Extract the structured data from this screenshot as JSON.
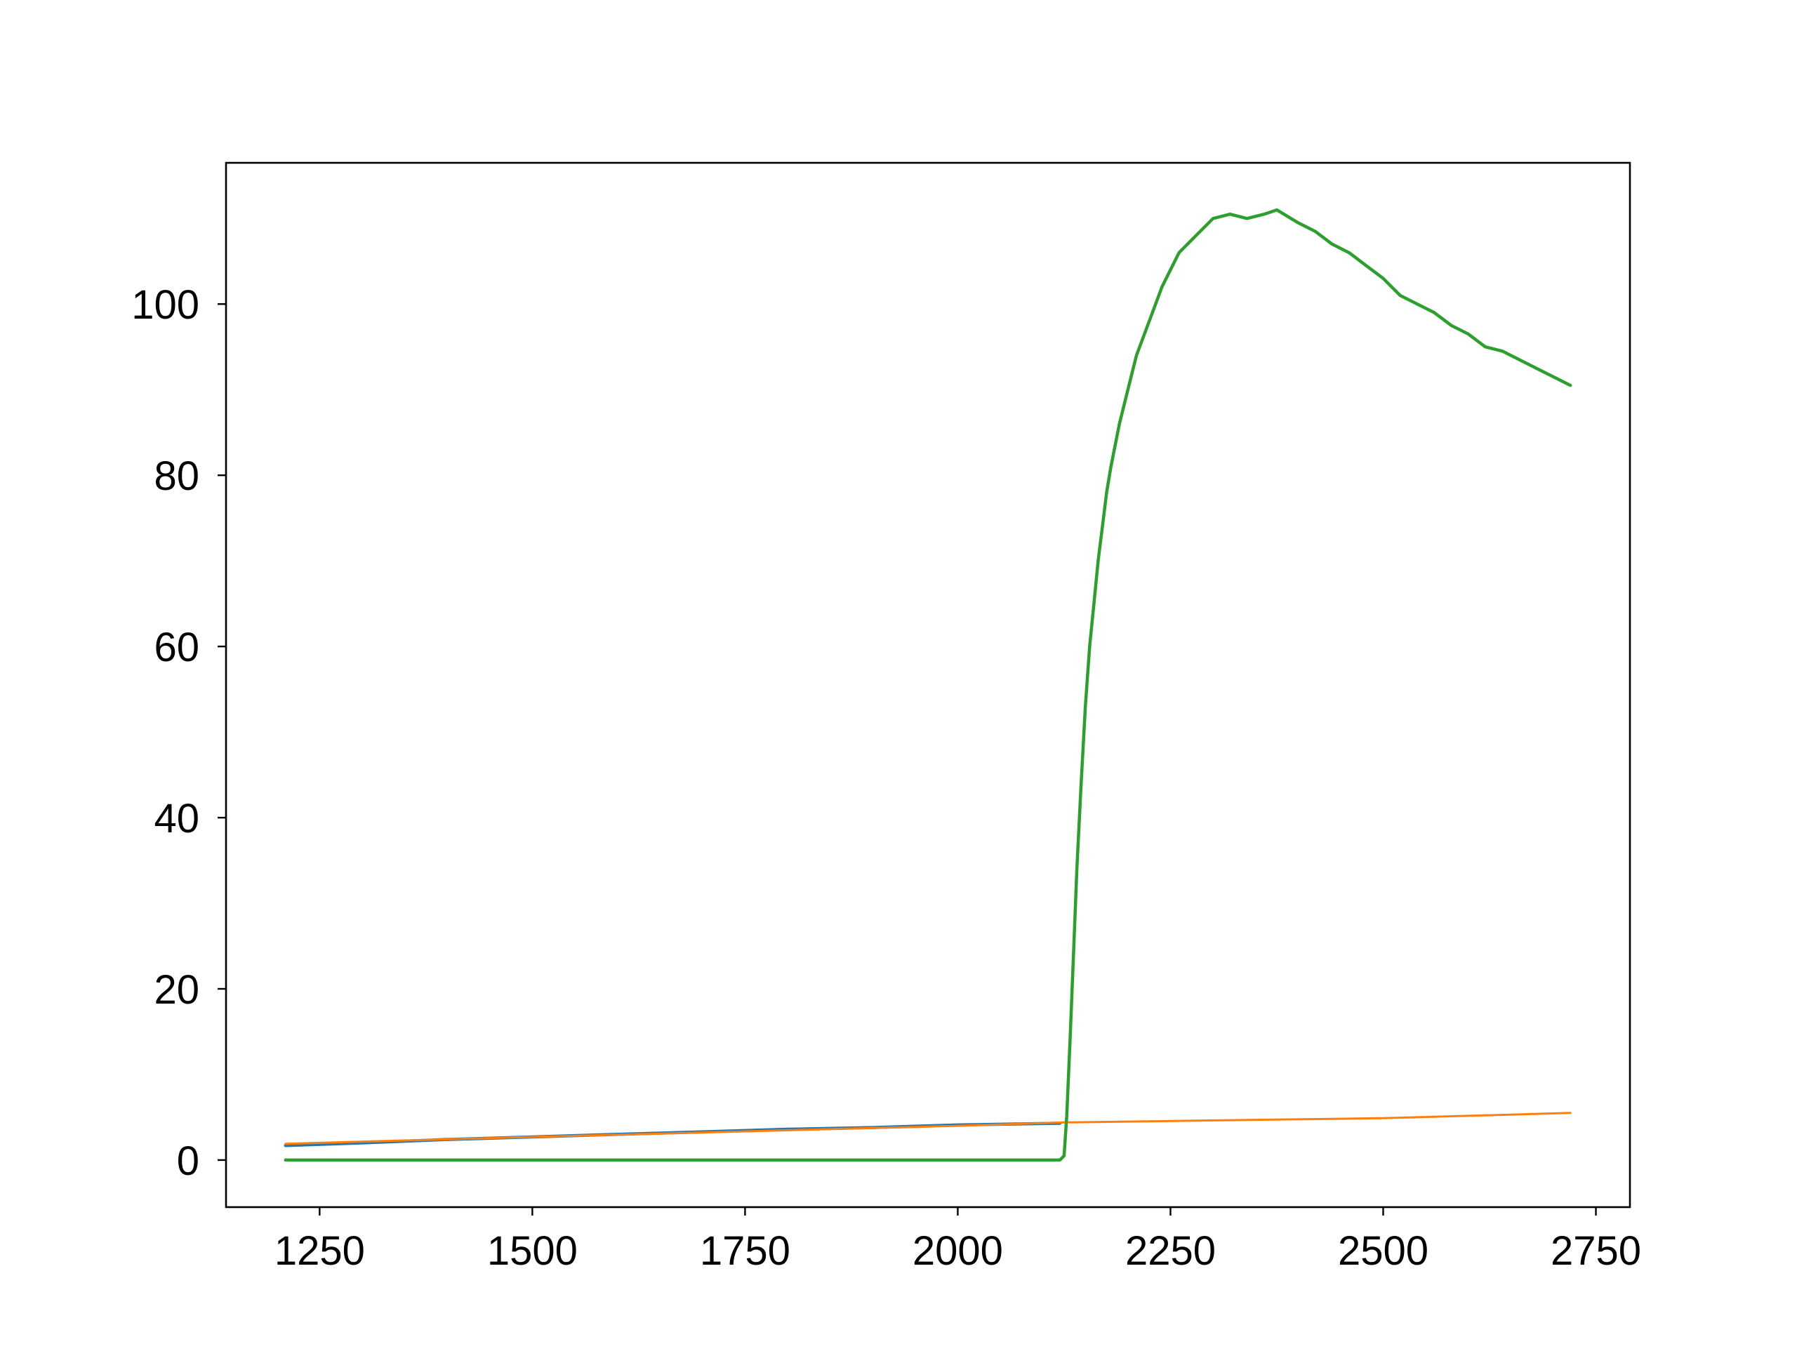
{
  "chart_data": {
    "type": "line",
    "title": "",
    "xlabel": "",
    "ylabel": "",
    "xlim": [
      1140,
      2790
    ],
    "ylim": [
      -5.5,
      116.5
    ],
    "x_ticks": [
      1250,
      1500,
      1750,
      2000,
      2250,
      2500,
      2750
    ],
    "y_ticks": [
      0,
      20,
      40,
      60,
      80,
      100
    ],
    "grid": false,
    "legend": "none",
    "colors": {
      "blue": "#1f77b4",
      "orange": "#ff7f0e",
      "green": "#2ca02c",
      "axes": "#000000"
    },
    "series": [
      {
        "color": "#1f77b4",
        "x": [
          1210,
          1300,
          1400,
          1500,
          1600,
          1700,
          1800,
          1900,
          2000,
          2120
        ],
        "y": [
          1.7,
          2.0,
          2.4,
          2.7,
          3.0,
          3.3,
          3.6,
          3.8,
          4.1,
          4.3
        ]
      },
      {
        "color": "#ff7f0e",
        "x": [
          1210,
          1500,
          2000,
          2125,
          2500,
          2720
        ],
        "y": [
          1.9,
          2.7,
          4.0,
          4.4,
          4.9,
          5.5
        ]
      },
      {
        "color": "#2ca02c",
        "x": [
          1210,
          1300,
          1400,
          1500,
          1600,
          1700,
          1800,
          1900,
          2000,
          2100,
          2120,
          2125,
          2128,
          2132,
          2136,
          2140,
          2145,
          2150,
          2155,
          2160,
          2165,
          2170,
          2175,
          2180,
          2190,
          2200,
          2210,
          2225,
          2240,
          2260,
          2280,
          2300,
          2320,
          2340,
          2360,
          2375,
          2400,
          2420,
          2440,
          2460,
          2480,
          2500,
          2520,
          2540,
          2560,
          2580,
          2600,
          2620,
          2640,
          2660,
          2680,
          2700,
          2710,
          2720
        ],
        "y": [
          0,
          0,
          0,
          0,
          0,
          0,
          0,
          0,
          0,
          0,
          0,
          0.5,
          5,
          14,
          24,
          34,
          44,
          53,
          60,
          65,
          70,
          74,
          78,
          81,
          86,
          90,
          94,
          98,
          102,
          106,
          108,
          110,
          110.5,
          110,
          110.5,
          111,
          109.5,
          108.5,
          107,
          106,
          104.5,
          103,
          101,
          100,
          99,
          97.5,
          96.5,
          95,
          94.5,
          93.5,
          92.5,
          91.5,
          91,
          90.5
        ]
      }
    ]
  }
}
